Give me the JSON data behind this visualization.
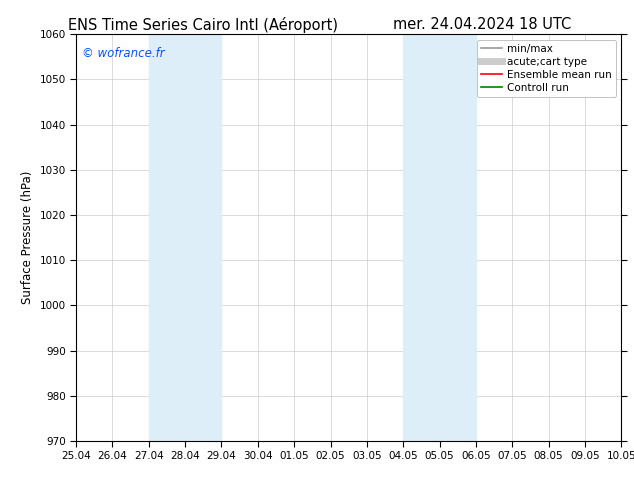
{
  "title_left": "ENS Time Series Cairo Intl (Aéroport)",
  "title_right": "mer. 24.04.2024 18 UTC",
  "ylabel": "Surface Pressure (hPa)",
  "ylim": [
    970,
    1060
  ],
  "yticks": [
    970,
    980,
    990,
    1000,
    1010,
    1020,
    1030,
    1040,
    1050,
    1060
  ],
  "xtick_labels": [
    "25.04",
    "26.04",
    "27.04",
    "28.04",
    "29.04",
    "30.04",
    "01.05",
    "02.05",
    "03.05",
    "04.05",
    "05.05",
    "06.05",
    "07.05",
    "08.05",
    "09.05",
    "10.05"
  ],
  "xtick_positions": [
    0,
    1,
    2,
    3,
    4,
    5,
    6,
    7,
    8,
    9,
    10,
    11,
    12,
    13,
    14,
    15
  ],
  "shaded_regions": [
    {
      "xmin": 2,
      "xmax": 4,
      "color": "#ddeef8"
    },
    {
      "xmin": 9,
      "xmax": 11,
      "color": "#ddeef8"
    }
  ],
  "watermark_text": "© wofrance.fr",
  "watermark_color": "#0055ff",
  "background_color": "#ffffff",
  "plot_bg_color": "#ffffff",
  "grid_color": "#cccccc",
  "legend_items": [
    {
      "label": "min/max",
      "color": "#999999",
      "lw": 1.2
    },
    {
      "label": "acute;cart type",
      "color": "#cccccc",
      "lw": 5
    },
    {
      "label": "Ensemble mean run",
      "color": "#ff0000",
      "lw": 1.2
    },
    {
      "label": "Controll run",
      "color": "#008000",
      "lw": 1.2
    }
  ],
  "title_fontsize": 10.5,
  "tick_fontsize": 7.5,
  "ylabel_fontsize": 8.5,
  "legend_fontsize": 7.5
}
